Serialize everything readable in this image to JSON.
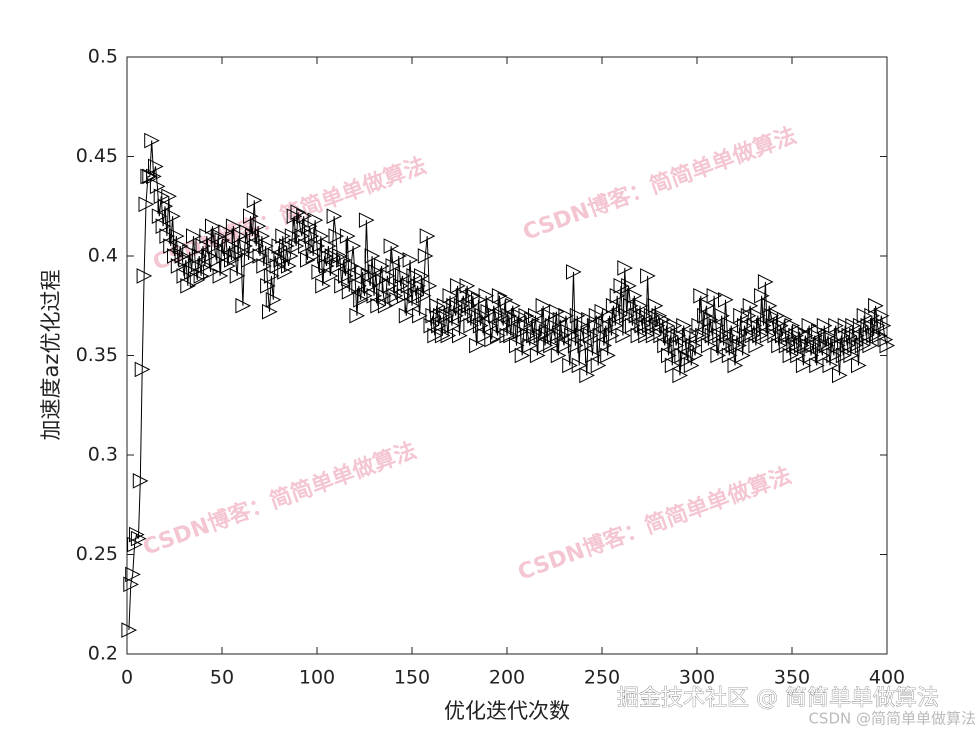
{
  "chart_data": {
    "type": "line",
    "xlabel": "优化迭代次数",
    "ylabel": "加速度az优化过程",
    "color": "#000000",
    "marker": "triangle-right",
    "xlim": [
      0,
      400
    ],
    "xticks": [
      0,
      50,
      100,
      150,
      200,
      250,
      300,
      350,
      400
    ],
    "ylim": [
      0.2,
      0.5
    ],
    "yticks": [
      0.2,
      0.25,
      0.3,
      0.35,
      0.4,
      0.45,
      0.5
    ],
    "x": [
      1,
      2,
      3,
      4,
      5,
      6,
      7,
      8,
      9,
      10,
      11,
      12,
      13,
      14,
      15,
      16,
      17,
      18,
      19,
      20,
      21,
      22,
      23,
      24,
      25,
      26,
      27,
      28,
      29,
      30,
      31,
      32,
      33,
      34,
      35,
      36,
      37,
      38,
      39,
      40,
      41,
      42,
      43,
      44,
      45,
      46,
      47,
      48,
      49,
      50,
      51,
      52,
      53,
      54,
      55,
      56,
      57,
      58,
      59,
      60,
      61,
      62,
      63,
      64,
      65,
      66,
      67,
      68,
      69,
      70,
      71,
      72,
      73,
      74,
      75,
      76,
      77,
      78,
      79,
      80,
      81,
      82,
      83,
      84,
      85,
      86,
      87,
      88,
      89,
      90,
      91,
      92,
      93,
      94,
      95,
      96,
      97,
      98,
      99,
      100,
      101,
      102,
      103,
      104,
      105,
      106,
      107,
      108,
      109,
      110,
      111,
      112,
      113,
      114,
      115,
      116,
      117,
      118,
      119,
      120,
      121,
      122,
      123,
      124,
      125,
      126,
      127,
      128,
      129,
      130,
      131,
      132,
      133,
      134,
      135,
      136,
      137,
      138,
      139,
      140,
      141,
      142,
      143,
      144,
      145,
      146,
      147,
      148,
      149,
      150,
      151,
      152,
      153,
      154,
      155,
      156,
      157,
      158,
      159,
      160,
      161,
      162,
      163,
      164,
      165,
      166,
      167,
      168,
      169,
      170,
      171,
      172,
      173,
      174,
      175,
      176,
      177,
      178,
      179,
      180,
      181,
      182,
      183,
      184,
      185,
      186,
      187,
      188,
      189,
      190,
      191,
      192,
      193,
      194,
      195,
      196,
      197,
      198,
      199,
      200,
      201,
      202,
      203,
      204,
      205,
      206,
      207,
      208,
      209,
      210,
      211,
      212,
      213,
      214,
      215,
      216,
      217,
      218,
      219,
      220,
      221,
      222,
      223,
      224,
      225,
      226,
      227,
      228,
      229,
      230,
      231,
      232,
      233,
      234,
      235,
      236,
      237,
      238,
      239,
      240,
      241,
      242,
      243,
      244,
      245,
      246,
      247,
      248,
      249,
      250,
      251,
      252,
      253,
      254,
      255,
      256,
      257,
      258,
      259,
      260,
      261,
      262,
      263,
      264,
      265,
      266,
      267,
      268,
      269,
      270,
      271,
      272,
      273,
      274,
      275,
      276,
      277,
      278,
      279,
      280,
      281,
      282,
      283,
      284,
      285,
      286,
      287,
      288,
      289,
      290,
      291,
      292,
      293,
      294,
      295,
      296,
      297,
      298,
      299,
      300,
      301,
      302,
      303,
      304,
      305,
      306,
      307,
      308,
      309,
      310,
      311,
      312,
      313,
      314,
      315,
      316,
      317,
      318,
      319,
      320,
      321,
      322,
      323,
      324,
      325,
      326,
      327,
      328,
      329,
      330,
      331,
      332,
      333,
      334,
      335,
      336,
      337,
      338,
      339,
      340,
      341,
      342,
      343,
      344,
      345,
      346,
      347,
      348,
      349,
      350,
      351,
      352,
      353,
      354,
      355,
      356,
      357,
      358,
      359,
      360,
      361,
      362,
      363,
      364,
      365,
      366,
      367,
      368,
      369,
      370,
      371,
      372,
      373,
      374,
      375,
      376,
      377,
      378,
      379,
      380,
      381,
      382,
      383,
      384,
      385,
      386,
      387,
      388,
      389,
      390,
      391,
      392,
      393,
      394,
      395,
      396,
      397,
      398,
      399,
      400
    ],
    "values": [
      0.212,
      0.235,
      0.24,
      0.255,
      0.26,
      0.258,
      0.287,
      0.343,
      0.39,
      0.426,
      0.44,
      0.44,
      0.458,
      0.44,
      0.445,
      0.435,
      0.42,
      0.43,
      0.415,
      0.425,
      0.41,
      0.43,
      0.405,
      0.42,
      0.4,
      0.41,
      0.395,
      0.405,
      0.4,
      0.39,
      0.398,
      0.385,
      0.402,
      0.392,
      0.41,
      0.395,
      0.388,
      0.4,
      0.39,
      0.405,
      0.395,
      0.41,
      0.4,
      0.392,
      0.415,
      0.405,
      0.398,
      0.41,
      0.39,
      0.408,
      0.4,
      0.412,
      0.395,
      0.405,
      0.398,
      0.415,
      0.4,
      0.39,
      0.41,
      0.402,
      0.375,
      0.405,
      0.412,
      0.398,
      0.42,
      0.41,
      0.428,
      0.405,
      0.415,
      0.4,
      0.41,
      0.395,
      0.405,
      0.385,
      0.372,
      0.39,
      0.378,
      0.4,
      0.395,
      0.405,
      0.398,
      0.41,
      0.392,
      0.405,
      0.395,
      0.4,
      0.41,
      0.42,
      0.405,
      0.422,
      0.415,
      0.41,
      0.42,
      0.405,
      0.398,
      0.415,
      0.41,
      0.4,
      0.418,
      0.405,
      0.392,
      0.41,
      0.385,
      0.4,
      0.395,
      0.405,
      0.39,
      0.4,
      0.42,
      0.41,
      0.395,
      0.4,
      0.385,
      0.398,
      0.39,
      0.41,
      0.382,
      0.395,
      0.405,
      0.39,
      0.37,
      0.385,
      0.378,
      0.392,
      0.38,
      0.418,
      0.39,
      0.385,
      0.4,
      0.38,
      0.392,
      0.375,
      0.388,
      0.395,
      0.38,
      0.375,
      0.39,
      0.385,
      0.405,
      0.395,
      0.38,
      0.378,
      0.4,
      0.385,
      0.39,
      0.38,
      0.37,
      0.385,
      0.398,
      0.375,
      0.39,
      0.38,
      0.385,
      0.37,
      0.39,
      0.38,
      0.4,
      0.41,
      0.385,
      0.365,
      0.37,
      0.36,
      0.375,
      0.365,
      0.37,
      0.36,
      0.375,
      0.37,
      0.36,
      0.38,
      0.365,
      0.375,
      0.37,
      0.385,
      0.36,
      0.375,
      0.38,
      0.37,
      0.385,
      0.375,
      0.365,
      0.38,
      0.37,
      0.355,
      0.378,
      0.365,
      0.37,
      0.36,
      0.38,
      0.372,
      0.365,
      0.358,
      0.375,
      0.37,
      0.36,
      0.38,
      0.37,
      0.365,
      0.378,
      0.36,
      0.37,
      0.36,
      0.375,
      0.368,
      0.355,
      0.37,
      0.362,
      0.35,
      0.365,
      0.37,
      0.36,
      0.355,
      0.368,
      0.36,
      0.37,
      0.35,
      0.365,
      0.36,
      0.375,
      0.355,
      0.362,
      0.37,
      0.355,
      0.365,
      0.36,
      0.372,
      0.35,
      0.368,
      0.36,
      0.355,
      0.37,
      0.362,
      0.345,
      0.36,
      0.392,
      0.355,
      0.37,
      0.345,
      0.365,
      0.36,
      0.355,
      0.34,
      0.368,
      0.36,
      0.35,
      0.365,
      0.37,
      0.345,
      0.36,
      0.372,
      0.355,
      0.365,
      0.35,
      0.37,
      0.36,
      0.375,
      0.365,
      0.38,
      0.37,
      0.385,
      0.36,
      0.394,
      0.37,
      0.385,
      0.375,
      0.365,
      0.38,
      0.37,
      0.36,
      0.375,
      0.365,
      0.37,
      0.36,
      0.39,
      0.365,
      0.37,
      0.36,
      0.375,
      0.365,
      0.37,
      0.36,
      0.368,
      0.355,
      0.365,
      0.35,
      0.36,
      0.345,
      0.365,
      0.355,
      0.36,
      0.34,
      0.35,
      0.365,
      0.355,
      0.348,
      0.36,
      0.345,
      0.355,
      0.35,
      0.36,
      0.365,
      0.38,
      0.36,
      0.37,
      0.375,
      0.355,
      0.368,
      0.36,
      0.38,
      0.365,
      0.35,
      0.36,
      0.37,
      0.355,
      0.378,
      0.36,
      0.35,
      0.365,
      0.355,
      0.345,
      0.36,
      0.355,
      0.37,
      0.35,
      0.365,
      0.36,
      0.37,
      0.375,
      0.36,
      0.365,
      0.355,
      0.37,
      0.36,
      0.38,
      0.365,
      0.387,
      0.36,
      0.375,
      0.37,
      0.365,
      0.36,
      0.37,
      0.355,
      0.365,
      0.36,
      0.368,
      0.355,
      0.36,
      0.35,
      0.365,
      0.355,
      0.36,
      0.35,
      0.362,
      0.355,
      0.345,
      0.36,
      0.355,
      0.365,
      0.35,
      0.355,
      0.36,
      0.345,
      0.362,
      0.355,
      0.35,
      0.365,
      0.355,
      0.36,
      0.345,
      0.358,
      0.35,
      0.365,
      0.355,
      0.34,
      0.36,
      0.35,
      0.365,
      0.355,
      0.36,
      0.35,
      0.365,
      0.355,
      0.36,
      0.345,
      0.365,
      0.355,
      0.37,
      0.36,
      0.365,
      0.355,
      0.37,
      0.36,
      0.375,
      0.365,
      0.36,
      0.37,
      0.365,
      0.358,
      0.355
    ],
    "watermarks": [
      "CSDN博客：简简单单做算法",
      "CSDN博客：简简单单做算法",
      "CSDN博客：简简单单做算法",
      "CSDN博客：简简单单做算法"
    ],
    "footer": "掘金技术社区 @ 简简单单做算法",
    "footer2": "CSDN @简简单单做算法"
  }
}
